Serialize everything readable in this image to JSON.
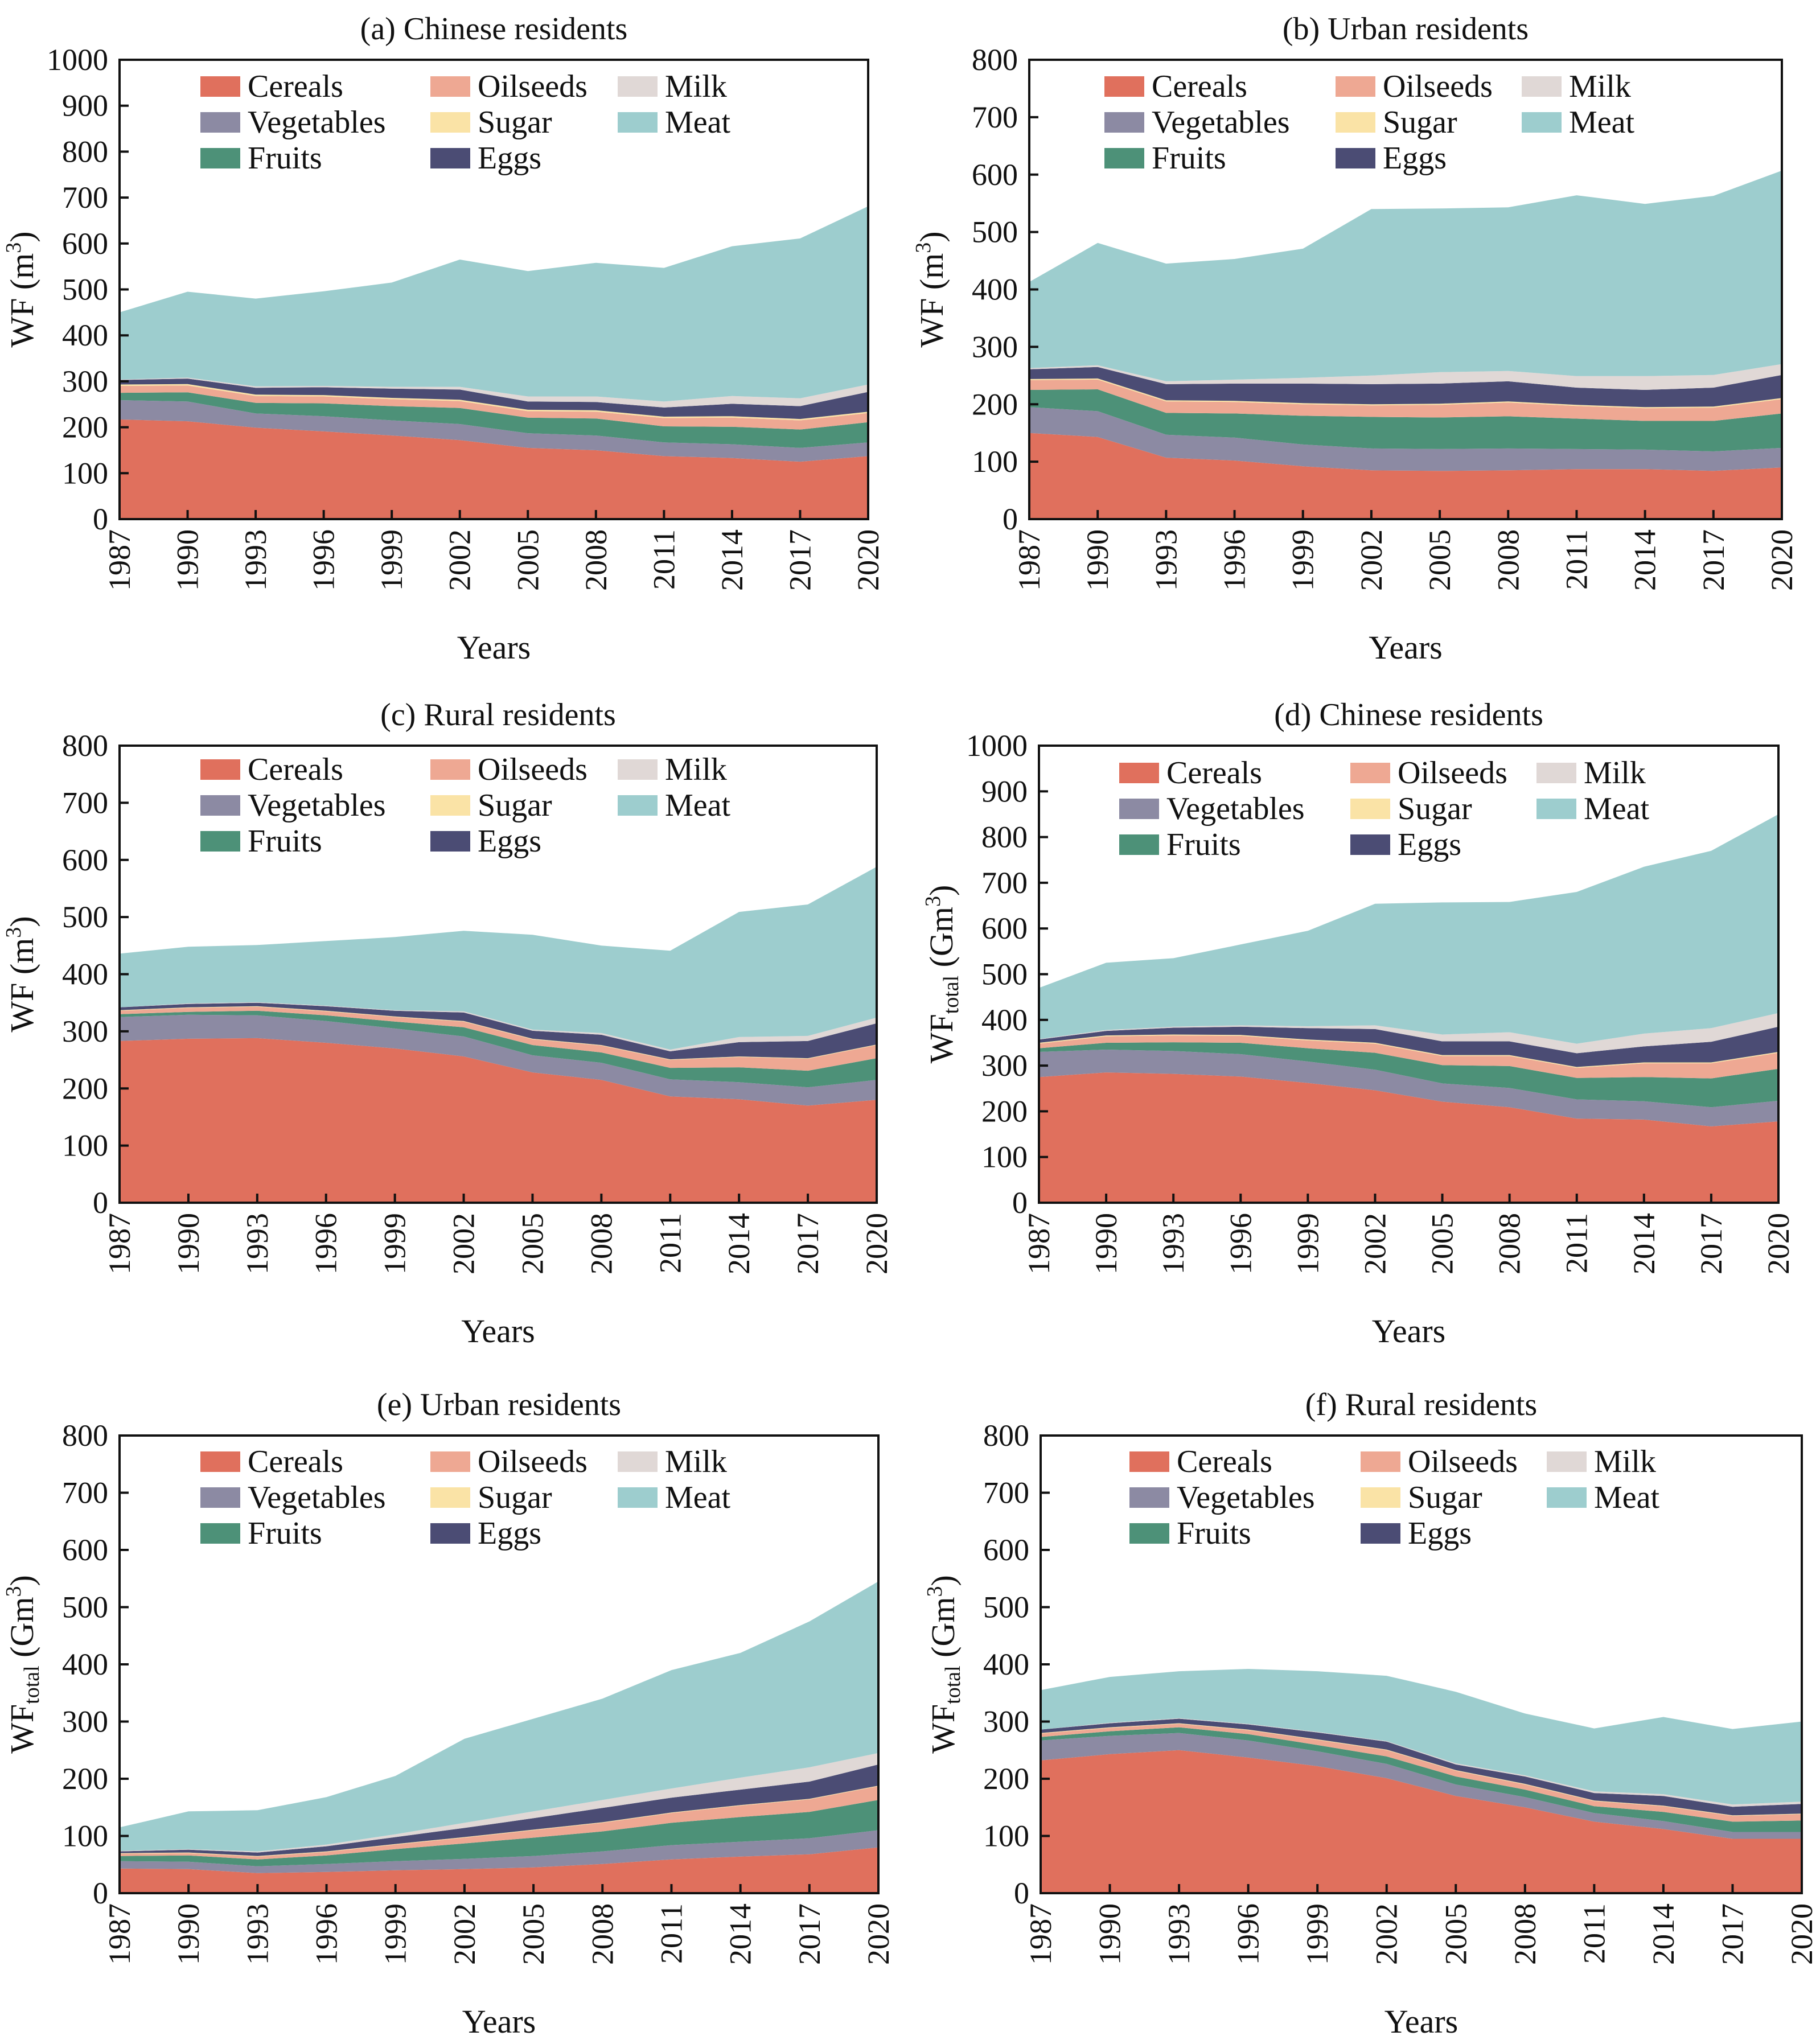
{
  "figure": {
    "series_order": [
      "Cereals",
      "Vegetables",
      "Fruits",
      "Oilseeds",
      "Sugar",
      "Eggs",
      "Milk",
      "Meat"
    ],
    "legend_columns": [
      [
        "Cereals",
        "Vegetables",
        "Fruits"
      ],
      [
        "Oilseeds",
        "Sugar",
        "Eggs"
      ],
      [
        "Milk",
        "Meat"
      ]
    ],
    "colors": {
      "Cereals": "#e0705d",
      "Vegetables": "#8c8aa3",
      "Fruits": "#4d9178",
      "Oilseeds": "#eea893",
      "Sugar": "#fae3a6",
      "Eggs": "#4b4c74",
      "Milk": "#e0d8d6",
      "Meat": "#9dcdce"
    }
  },
  "chart_data": [
    {
      "type": "area",
      "title": "(a) Chinese residents",
      "xlabel": "Years",
      "ylabel": "WF (m³)",
      "ylabel_parts": {
        "base": "WF",
        "sub": "",
        "unit_open": " (m",
        "sup": "3",
        "unit_close": ")"
      },
      "ylim": [
        0,
        1000
      ],
      "yticks": [
        0,
        100,
        200,
        300,
        400,
        500,
        600,
        700,
        800,
        900,
        1000
      ],
      "x": [
        1987,
        1990,
        1993,
        1996,
        1999,
        2002,
        2005,
        2008,
        2011,
        2014,
        2017,
        2020
      ],
      "stacked": true,
      "series": [
        {
          "name": "Cereals",
          "values": [
            217,
            213,
            199,
            191,
            182,
            172,
            155,
            150,
            137,
            133,
            125,
            137
          ]
        },
        {
          "name": "Vegetables",
          "values": [
            42,
            43,
            31,
            33,
            33,
            35,
            32,
            32,
            30,
            30,
            30,
            30
          ]
        },
        {
          "name": "Fruits",
          "values": [
            16,
            20,
            23,
            28,
            31,
            35,
            34,
            37,
            35,
            38,
            40,
            44
          ]
        },
        {
          "name": "Oilseeds",
          "values": [
            15,
            15,
            15,
            15,
            15,
            15,
            14,
            15,
            18,
            20,
            20,
            20
          ]
        },
        {
          "name": "Sugar",
          "values": [
            3,
            3,
            3,
            3,
            3,
            3,
            3,
            3,
            3,
            3,
            3,
            3
          ]
        },
        {
          "name": "Eggs",
          "values": [
            10,
            12,
            15,
            17,
            20,
            22,
            18,
            18,
            20,
            27,
            28,
            43
          ]
        },
        {
          "name": "Milk",
          "values": [
            1,
            2,
            3,
            3,
            4,
            6,
            11,
            12,
            13,
            17,
            17,
            16
          ]
        },
        {
          "name": "Meat",
          "values": [
            146,
            187,
            191,
            206,
            227,
            277,
            273,
            291,
            291,
            326,
            348,
            388
          ]
        }
      ]
    },
    {
      "type": "area",
      "title": "(b) Urban residents",
      "xlabel": "Years",
      "ylabel": "WF (m³)",
      "ylabel_parts": {
        "base": "WF",
        "sub": "",
        "unit_open": " (m",
        "sup": "3",
        "unit_close": ")"
      },
      "ylim": [
        0,
        800
      ],
      "yticks": [
        0,
        100,
        200,
        300,
        400,
        500,
        600,
        700,
        800
      ],
      "x": [
        1987,
        1990,
        1993,
        1996,
        1999,
        2002,
        2005,
        2008,
        2011,
        2014,
        2017,
        2020
      ],
      "stacked": true,
      "series": [
        {
          "name": "Cereals",
          "values": [
            150,
            143,
            107,
            102,
            92,
            85,
            84,
            85,
            87,
            87,
            84,
            90
          ]
        },
        {
          "name": "Vegetables",
          "values": [
            45,
            45,
            40,
            40,
            38,
            38,
            38,
            38,
            35,
            34,
            34,
            34
          ]
        },
        {
          "name": "Fruits",
          "values": [
            30,
            38,
            38,
            42,
            50,
            55,
            55,
            56,
            53,
            50,
            53,
            60
          ]
        },
        {
          "name": "Oilseeds",
          "values": [
            17,
            17,
            20,
            20,
            20,
            20,
            22,
            24,
            22,
            22,
            23,
            25
          ]
        },
        {
          "name": "Sugar",
          "values": [
            2,
            2,
            2,
            2,
            2,
            2,
            2,
            2,
            2,
            2,
            2,
            2
          ]
        },
        {
          "name": "Eggs",
          "values": [
            17,
            20,
            28,
            30,
            34,
            35,
            35,
            35,
            30,
            30,
            33,
            40
          ]
        },
        {
          "name": "Milk",
          "values": [
            2,
            3,
            5,
            7,
            10,
            15,
            20,
            18,
            20,
            24,
            22,
            19
          ]
        },
        {
          "name": "Meat",
          "values": [
            150,
            213,
            205,
            210,
            225,
            290,
            285,
            285,
            315,
            300,
            312,
            337
          ]
        }
      ]
    },
    {
      "type": "area",
      "title": "(c) Rural residents",
      "xlabel": "Years",
      "ylabel": "WF (m³)",
      "ylabel_parts": {
        "base": "WF",
        "sub": "",
        "unit_open": " (m",
        "sup": "3",
        "unit_close": ")"
      },
      "ylim": [
        0,
        800
      ],
      "yticks": [
        0,
        100,
        200,
        300,
        400,
        500,
        600,
        700,
        800
      ],
      "x": [
        1987,
        1990,
        1993,
        1996,
        1999,
        2002,
        2005,
        2008,
        2011,
        2014,
        2017,
        2020
      ],
      "stacked": true,
      "series": [
        {
          "name": "Cereals",
          "values": [
            283,
            287,
            288,
            280,
            270,
            256,
            228,
            215,
            186,
            181,
            170,
            180
          ]
        },
        {
          "name": "Vegetables",
          "values": [
            42,
            42,
            40,
            38,
            35,
            35,
            30,
            30,
            30,
            30,
            32,
            35
          ]
        },
        {
          "name": "Fruits",
          "values": [
            5,
            5,
            8,
            10,
            12,
            16,
            18,
            18,
            20,
            26,
            29,
            38
          ]
        },
        {
          "name": "Oilseeds",
          "values": [
            6,
            7,
            7,
            7,
            8,
            10,
            10,
            12,
            14,
            18,
            21,
            23
          ]
        },
        {
          "name": "Sugar",
          "values": [
            1,
            1,
            1,
            1,
            1,
            1,
            1,
            1,
            1,
            1,
            1,
            1
          ]
        },
        {
          "name": "Eggs",
          "values": [
            5,
            6,
            6,
            8,
            10,
            15,
            14,
            18,
            14,
            25,
            30,
            37
          ]
        },
        {
          "name": "Milk",
          "values": [
            0,
            1,
            1,
            1,
            1,
            2,
            2,
            3,
            3,
            9,
            9,
            10
          ]
        },
        {
          "name": "Meat",
          "values": [
            94,
            99,
            100,
            113,
            128,
            141,
            166,
            153,
            173,
            219,
            230,
            264
          ]
        }
      ]
    },
    {
      "type": "area",
      "title": "(d) Chinese residents",
      "xlabel": "Years",
      "ylabel": "WFtotal (Gm³)",
      "ylabel_parts": {
        "base": "WF",
        "sub": "total",
        "unit_open": " (Gm",
        "sup": "3",
        "unit_close": ")"
      },
      "ylim": [
        0,
        1000
      ],
      "yticks": [
        0,
        100,
        200,
        300,
        400,
        500,
        600,
        700,
        800,
        900,
        1000
      ],
      "x": [
        1987,
        1990,
        1993,
        1996,
        1999,
        2002,
        2005,
        2008,
        2011,
        2014,
        2017,
        2020
      ],
      "stacked": true,
      "series": [
        {
          "name": "Cereals",
          "values": [
            275,
            285,
            282,
            276,
            262,
            246,
            221,
            209,
            184,
            182,
            167,
            178
          ]
        },
        {
          "name": "Vegetables",
          "values": [
            55,
            50,
            50,
            49,
            47,
            45,
            40,
            42,
            42,
            40,
            42,
            45
          ]
        },
        {
          "name": "Fruits",
          "values": [
            8,
            15,
            19,
            25,
            29,
            37,
            40,
            48,
            47,
            53,
            63,
            70
          ]
        },
        {
          "name": "Oilseeds",
          "values": [
            10,
            14,
            15,
            15,
            17,
            20,
            20,
            22,
            22,
            30,
            33,
            35
          ]
        },
        {
          "name": "Sugar",
          "values": [
            2,
            2,
            2,
            2,
            2,
            2,
            2,
            2,
            2,
            2,
            2,
            2
          ]
        },
        {
          "name": "Eggs",
          "values": [
            7,
            10,
            15,
            18,
            25,
            30,
            30,
            30,
            30,
            35,
            45,
            55
          ]
        },
        {
          "name": "Milk",
          "values": [
            1,
            2,
            2,
            3,
            4,
            8,
            15,
            20,
            21,
            28,
            30,
            30
          ]
        },
        {
          "name": "Meat",
          "values": [
            112,
            147,
            150,
            177,
            209,
            266,
            289,
            285,
            332,
            365,
            388,
            435
          ]
        }
      ]
    },
    {
      "type": "area",
      "title": "(e) Urban residents",
      "xlabel": "Years",
      "ylabel": "WFtotal (Gm³)",
      "ylabel_parts": {
        "base": "WF",
        "sub": "total",
        "unit_open": " (Gm",
        "sup": "3",
        "unit_close": ")"
      },
      "ylim": [
        0,
        800
      ],
      "yticks": [
        0,
        100,
        200,
        300,
        400,
        500,
        600,
        700,
        800
      ],
      "x": [
        1987,
        1990,
        1993,
        1996,
        1999,
        2002,
        2005,
        2008,
        2011,
        2014,
        2017,
        2020
      ],
      "stacked": true,
      "series": [
        {
          "name": "Cereals",
          "values": [
            43,
            42,
            35,
            37,
            40,
            42,
            45,
            51,
            59,
            64,
            68,
            80
          ]
        },
        {
          "name": "Vegetables",
          "values": [
            13,
            13,
            12,
            14,
            16,
            18,
            20,
            22,
            25,
            26,
            28,
            30
          ]
        },
        {
          "name": "Fruits",
          "values": [
            9,
            11,
            12,
            15,
            21,
            27,
            32,
            35,
            39,
            43,
            46,
            53
          ]
        },
        {
          "name": "Oilseeds",
          "values": [
            4,
            4,
            5,
            6,
            8,
            10,
            13,
            15,
            17,
            20,
            22,
            24
          ]
        },
        {
          "name": "Sugar",
          "values": [
            1,
            1,
            1,
            1,
            1,
            1,
            1,
            1,
            1,
            1,
            1,
            1
          ]
        },
        {
          "name": "Eggs",
          "values": [
            3,
            5,
            6,
            9,
            12,
            16,
            20,
            25,
            26,
            27,
            30,
            37
          ]
        },
        {
          "name": "Milk",
          "values": [
            1,
            1,
            2,
            3,
            5,
            9,
            12,
            14,
            16,
            21,
            25,
            20
          ]
        },
        {
          "name": "Meat",
          "values": [
            41,
            66,
            72,
            83,
            102,
            147,
            162,
            177,
            207,
            218,
            255,
            300
          ]
        }
      ]
    },
    {
      "type": "area",
      "title": "(f) Rural residents",
      "xlabel": "Years",
      "ylabel": "WFtotal (Gm³)",
      "ylabel_parts": {
        "base": "WF",
        "sub": "total",
        "unit_open": " (Gm",
        "sup": "3",
        "unit_close": ")"
      },
      "ylim": [
        0,
        800
      ],
      "yticks": [
        0,
        100,
        200,
        300,
        400,
        500,
        600,
        700,
        800
      ],
      "x": [
        1987,
        1990,
        1993,
        1996,
        1999,
        2002,
        2005,
        2008,
        2011,
        2014,
        2017,
        2020
      ],
      "stacked": true,
      "series": [
        {
          "name": "Cereals",
          "values": [
            232,
            243,
            250,
            237,
            222,
            201,
            170,
            150,
            125,
            112,
            95,
            95
          ]
        },
        {
          "name": "Vegetables",
          "values": [
            35,
            32,
            30,
            30,
            26,
            25,
            20,
            18,
            15,
            14,
            12,
            12
          ]
        },
        {
          "name": "Fruits",
          "values": [
            6,
            8,
            10,
            11,
            11,
            13,
            14,
            13,
            12,
            16,
            18,
            20
          ]
        },
        {
          "name": "Oilseeds",
          "values": [
            6,
            6,
            6,
            7,
            9,
            11,
            10,
            9,
            9,
            10,
            10,
            11
          ]
        },
        {
          "name": "Sugar",
          "values": [
            1,
            1,
            1,
            1,
            1,
            1,
            1,
            1,
            1,
            1,
            1,
            1
          ]
        },
        {
          "name": "Eggs",
          "values": [
            6,
            7,
            8,
            9,
            12,
            14,
            10,
            13,
            13,
            17,
            15,
            17
          ]
        },
        {
          "name": "Milk",
          "values": [
            0,
            1,
            1,
            1,
            1,
            1,
            2,
            2,
            3,
            3,
            4,
            4
          ]
        },
        {
          "name": "Meat",
          "values": [
            69,
            80,
            82,
            96,
            106,
            114,
            125,
            108,
            110,
            135,
            132,
            140
          ]
        }
      ]
    }
  ]
}
